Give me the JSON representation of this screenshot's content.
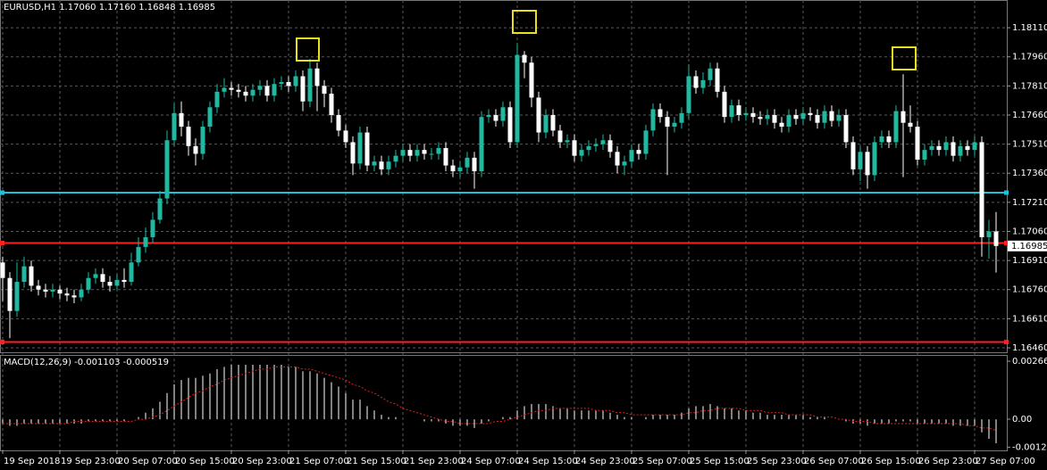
{
  "chart_data": [
    {
      "type": "candlestick",
      "title": "EURUSD,H1  1.17060 1.17160 1.16848 1.16985",
      "open": [
        1.169,
        1.1682,
        1.1665,
        1.168,
        1.1688,
        1.1678,
        1.1676,
        1.1675,
        1.1676,
        1.1674,
        1.1673,
        1.1672,
        1.1676,
        1.1682,
        1.1684,
        1.168,
        1.1678,
        1.1681,
        1.168,
        1.169,
        1.1698,
        1.1703,
        1.1712,
        1.1723,
        1.1753,
        1.1767,
        1.176,
        1.175,
        1.1746,
        1.176,
        1.177,
        1.1778,
        1.178,
        1.1779,
        1.1778,
        1.1776,
        1.1779,
        1.1781,
        1.1776,
        1.1782,
        1.1783,
        1.1781,
        1.1786,
        1.1773,
        1.179,
        1.1781,
        1.1777,
        1.1766,
        1.1758,
        1.1752,
        1.1741,
        1.1757,
        1.174,
        1.1742,
        1.1738,
        1.1742,
        1.1745,
        1.1748,
        1.1745,
        1.1748,
        1.1746,
        1.1746,
        1.1749,
        1.174,
        1.1737,
        1.1739,
        1.1744,
        1.1737,
        1.1765,
        1.1766,
        1.1763,
        1.177,
        1.1752,
        1.1797,
        1.1793,
        1.1775,
        1.1757,
        1.1766,
        1.1758,
        1.1752,
        1.1753,
        1.1745,
        1.1748,
        1.175,
        1.1751,
        1.1753,
        1.1747,
        1.174,
        1.1742,
        1.1748,
        1.1746,
        1.1758,
        1.1769,
        1.1765,
        1.176,
        1.1762,
        1.1767,
        1.1786,
        1.178,
        1.1784,
        1.179,
        1.1778,
        1.1765,
        1.1771,
        1.1766,
        1.1767,
        1.1765,
        1.1764,
        1.1766,
        1.1762,
        1.176,
        1.1766,
        1.1764,
        1.1767,
        1.1766,
        1.1762,
        1.1768,
        1.1763,
        1.1766,
        1.1752,
        1.1738,
        1.1747,
        1.1735,
        1.1752,
        1.1755,
        1.1752,
        1.1768,
        1.1762,
        1.176,
        1.1743,
        1.1748,
        1.175,
        1.1748,
        1.1752,
        1.1745,
        1.175,
        1.1748,
        1.1752,
        1.1703,
        1.1706
      ],
      "high": [
        1.1693,
        1.1685,
        1.169,
        1.1693,
        1.1691,
        1.1681,
        1.1679,
        1.1679,
        1.1678,
        1.1677,
        1.1676,
        1.1679,
        1.1685,
        1.1687,
        1.1687,
        1.1683,
        1.1684,
        1.1687,
        1.1695,
        1.1703,
        1.1708,
        1.1716,
        1.1727,
        1.1758,
        1.1772,
        1.1773,
        1.1763,
        1.1754,
        1.1763,
        1.1773,
        1.1782,
        1.1785,
        1.1783,
        1.1782,
        1.1781,
        1.1782,
        1.1784,
        1.1784,
        1.1785,
        1.1786,
        1.1786,
        1.1789,
        1.1789,
        1.1795,
        1.1793,
        1.1784,
        1.178,
        1.1769,
        1.1761,
        1.1755,
        1.176,
        1.176,
        1.1745,
        1.1745,
        1.1745,
        1.1748,
        1.1751,
        1.1751,
        1.1751,
        1.1751,
        1.1749,
        1.1752,
        1.1752,
        1.1743,
        1.1742,
        1.1747,
        1.1747,
        1.1768,
        1.1769,
        1.1769,
        1.1773,
        1.1773,
        1.1803,
        1.1799,
        1.1796,
        1.1778,
        1.1769,
        1.1769,
        1.1761,
        1.1756,
        1.1756,
        1.1751,
        1.1753,
        1.1754,
        1.1756,
        1.1756,
        1.175,
        1.1745,
        1.1751,
        1.1751,
        1.1761,
        1.1772,
        1.1772,
        1.1768,
        1.1765,
        1.177,
        1.1792,
        1.1789,
        1.1788,
        1.1793,
        1.1793,
        1.1781,
        1.1774,
        1.1774,
        1.177,
        1.177,
        1.1768,
        1.1769,
        1.1769,
        1.1765,
        1.1769,
        1.1769,
        1.177,
        1.177,
        1.1769,
        1.1771,
        1.1771,
        1.1769,
        1.1769,
        1.1755,
        1.175,
        1.175,
        1.1755,
        1.1758,
        1.1758,
        1.1771,
        1.1787,
        1.1771,
        1.1763,
        1.1751,
        1.1753,
        1.1753,
        1.1755,
        1.1755,
        1.1753,
        1.1753,
        1.1755,
        1.1755,
        1.1712,
        1.1716
      ],
      "low": [
        1.167,
        1.1651,
        1.1662,
        1.1677,
        1.1675,
        1.1673,
        1.1672,
        1.1672,
        1.1671,
        1.167,
        1.1669,
        1.167,
        1.1674,
        1.1679,
        1.1677,
        1.1675,
        1.1676,
        1.1677,
        1.1678,
        1.1688,
        1.1695,
        1.17,
        1.171,
        1.172,
        1.175,
        1.1755,
        1.1745,
        1.174,
        1.1743,
        1.1757,
        1.1767,
        1.1775,
        1.1776,
        1.1775,
        1.1773,
        1.1773,
        1.1776,
        1.1773,
        1.1773,
        1.1779,
        1.1778,
        1.1778,
        1.1768,
        1.177,
        1.1768,
        1.177,
        1.1762,
        1.1755,
        1.1749,
        1.1735,
        1.1738,
        1.1737,
        1.1737,
        1.1735,
        1.1735,
        1.1739,
        1.1742,
        1.1742,
        1.1742,
        1.1743,
        1.1743,
        1.1743,
        1.1737,
        1.1734,
        1.1734,
        1.1736,
        1.1728,
        1.1734,
        1.1762,
        1.176,
        1.176,
        1.1749,
        1.1749,
        1.1785,
        1.177,
        1.1752,
        1.1754,
        1.1755,
        1.1749,
        1.1749,
        1.1742,
        1.1742,
        1.1745,
        1.1747,
        1.1748,
        1.1744,
        1.1736,
        1.1735,
        1.1739,
        1.1743,
        1.1743,
        1.1755,
        1.1762,
        1.1735,
        1.1757,
        1.1759,
        1.1764,
        1.1777,
        1.1777,
        1.1781,
        1.1775,
        1.1762,
        1.1762,
        1.1763,
        1.1763,
        1.1762,
        1.1761,
        1.1761,
        1.1759,
        1.1757,
        1.1757,
        1.1761,
        1.1761,
        1.1763,
        1.1759,
        1.1759,
        1.176,
        1.176,
        1.1749,
        1.1735,
        1.1732,
        1.1728,
        1.1732,
        1.1749,
        1.1749,
        1.1749,
        1.1734,
        1.1757,
        1.174,
        1.174,
        1.1745,
        1.1745,
        1.1745,
        1.1742,
        1.1742,
        1.1745,
        1.1745,
        1.1693,
        1.1692,
        1.16848
      ],
      "close": [
        1.1682,
        1.1665,
        1.168,
        1.1688,
        1.1678,
        1.1676,
        1.1675,
        1.1676,
        1.1674,
        1.1673,
        1.1672,
        1.1676,
        1.1682,
        1.1684,
        1.168,
        1.1678,
        1.1681,
        1.168,
        1.169,
        1.1698,
        1.1703,
        1.1712,
        1.1723,
        1.1753,
        1.1767,
        1.176,
        1.175,
        1.1746,
        1.176,
        1.177,
        1.1778,
        1.178,
        1.1779,
        1.1778,
        1.1776,
        1.1779,
        1.1781,
        1.1776,
        1.1782,
        1.1783,
        1.1781,
        1.1786,
        1.1773,
        1.179,
        1.1781,
        1.1777,
        1.1766,
        1.1758,
        1.1752,
        1.1741,
        1.1757,
        1.174,
        1.1742,
        1.1738,
        1.1742,
        1.1745,
        1.1748,
        1.1745,
        1.1748,
        1.1746,
        1.1746,
        1.1749,
        1.174,
        1.1737,
        1.1739,
        1.1744,
        1.1737,
        1.1765,
        1.1766,
        1.1763,
        1.177,
        1.1752,
        1.1797,
        1.1793,
        1.1775,
        1.1757,
        1.1766,
        1.1758,
        1.1752,
        1.1753,
        1.1745,
        1.1748,
        1.175,
        1.1751,
        1.1753,
        1.1747,
        1.174,
        1.1742,
        1.1748,
        1.1746,
        1.1758,
        1.1769,
        1.1765,
        1.176,
        1.1762,
        1.1767,
        1.1786,
        1.178,
        1.1784,
        1.179,
        1.1778,
        1.1765,
        1.1771,
        1.1766,
        1.1767,
        1.1765,
        1.1764,
        1.1766,
        1.1762,
        1.176,
        1.1766,
        1.1764,
        1.1767,
        1.1766,
        1.1762,
        1.1768,
        1.1763,
        1.1766,
        1.1752,
        1.1738,
        1.1747,
        1.1735,
        1.1752,
        1.1755,
        1.1752,
        1.1768,
        1.1762,
        1.176,
        1.1743,
        1.1748,
        1.175,
        1.1748,
        1.1752,
        1.1745,
        1.175,
        1.1748,
        1.1752,
        1.1703,
        1.1706,
        1.16985
      ],
      "up_color": "#20b8a0",
      "down_color": "#ffffff",
      "x_ticks": [
        "19 Sep 2018",
        "19 Sep 23:00",
        "20 Sep 07:00",
        "20 Sep 15:00",
        "20 Sep 23:00",
        "21 Sep 07:00",
        "21 Sep 15:00",
        "21 Sep 23:00",
        "24 Sep 07:00",
        "24 Sep 15:00",
        "24 Sep 23:00",
        "25 Sep 07:00",
        "25 Sep 15:00",
        "25 Sep 23:00",
        "26 Sep 07:00",
        "26 Sep 15:00",
        "26 Sep 23:00",
        "27 Sep 07:00"
      ],
      "ylim": [
        1.16437,
        1.18253
      ],
      "yticks": [
        {
          "value": 1.1811,
          "label": "1.18110"
        },
        {
          "value": 1.1796,
          "label": "1.17960"
        },
        {
          "value": 1.1781,
          "label": "1.17810"
        },
        {
          "value": 1.1766,
          "label": "1.17660"
        },
        {
          "value": 1.1751,
          "label": "1.17510"
        },
        {
          "value": 1.1736,
          "label": "1.17360"
        },
        {
          "value": 1.1721,
          "label": "1.17210"
        },
        {
          "value": 1.1706,
          "label": "1.17060"
        },
        {
          "value": 1.1691,
          "label": "1.16910"
        },
        {
          "value": 1.1676,
          "label": "1.16760"
        },
        {
          "value": 1.1661,
          "label": "1.16610"
        },
        {
          "value": 1.1646,
          "label": "1.16460"
        }
      ],
      "grid": true,
      "levels": [
        {
          "value": 1.1726,
          "color": "#20c0d8"
        },
        {
          "value": 1.17,
          "color": "#ff2020"
        },
        {
          "value": 1.1649,
          "color": "#ff2020"
        }
      ],
      "price_label": {
        "value": 1.16985,
        "label": "1.16985"
      }
    },
    {
      "type": "macd",
      "title": "MACD(12,26,9) -0.001103 -0.000519",
      "values": [
        -0.0002,
        -0.0003,
        -0.0003,
        -0.0002,
        -0.0002,
        -0.0002,
        -0.0002,
        -0.0002,
        -0.0002,
        -0.0002,
        -0.0002,
        -0.0002,
        -0.0001,
        -0.0001,
        -0.0001,
        -0.0001,
        -0.0001,
        -0.0001,
        0,
        0.0001,
        0.0003,
        0.0005,
        0.0008,
        0.0012,
        0.0016,
        0.0018,
        0.0019,
        0.0019,
        0.002,
        0.0021,
        0.0023,
        0.0024,
        0.0025,
        0.0025,
        0.0025,
        0.0025,
        0.0025,
        0.0025,
        0.0025,
        0.0025,
        0.0024,
        0.0024,
        0.0022,
        0.0022,
        0.0021,
        0.0019,
        0.0017,
        0.0015,
        0.0012,
        0.0009,
        0.0009,
        0.0006,
        0.0004,
        0.0002,
        0.0001,
        0.0001,
        0,
        0,
        0,
        -0.0001,
        -0.0001,
        -0.0001,
        -0.0002,
        -0.0003,
        -0.0003,
        -0.0003,
        -0.0004,
        -0.0002,
        -0.0001,
        0,
        0.0001,
        0.0001,
        0.0004,
        0.0006,
        0.0007,
        0.0007,
        0.0007,
        0.0006,
        0.0005,
        0.0005,
        0.0004,
        0.0004,
        0.0004,
        0.0004,
        0.0004,
        0.0003,
        0.0002,
        0.0001,
        0.0001,
        0,
        0.0001,
        0.0002,
        0.0002,
        0.0002,
        0.0002,
        0.0003,
        0.0005,
        0.0006,
        0.0006,
        0.0007,
        0.0006,
        0.0005,
        0.0005,
        0.0004,
        0.0004,
        0.0003,
        0.0003,
        0.0002,
        0.0002,
        0.0002,
        0.0002,
        0.0002,
        0.0002,
        0.0001,
        0.0001,
        0.0001,
        0,
        0,
        -0.0001,
        -0.0002,
        -0.0002,
        -0.0003,
        -0.0002,
        -0.0002,
        -0.0002,
        -0.0001,
        -0.0001,
        -0.0001,
        -0.0002,
        -0.0002,
        -0.0002,
        -0.0002,
        -0.0002,
        -0.0003,
        -0.0003,
        -0.0003,
        -0.0003,
        -0.0006,
        -0.0009,
        -0.001103
      ],
      "signal": [
        -0.0002,
        -0.0002,
        -0.0002,
        -0.0002,
        -0.0002,
        -0.0002,
        -0.0002,
        -0.0002,
        -0.0002,
        -0.0002,
        -0.0001,
        -0.0001,
        -0.0001,
        -0.0001,
        -0.0001,
        -0.0001,
        -0.0001,
        -0.0001,
        -0.0001,
        0,
        0,
        0.0001,
        0.0002,
        0.0004,
        0.0006,
        0.0008,
        0.001,
        0.0012,
        0.0013,
        0.0015,
        0.0016,
        0.0018,
        0.0019,
        0.002,
        0.0021,
        0.0022,
        0.0023,
        0.0023,
        0.0024,
        0.0024,
        0.0024,
        0.0024,
        0.0023,
        0.0023,
        0.0022,
        0.0021,
        0.002,
        0.0019,
        0.0018,
        0.0016,
        0.0015,
        0.0013,
        0.0012,
        0.001,
        0.0008,
        0.0007,
        0.0005,
        0.0004,
        0.0003,
        0.0002,
        0.0001,
        0,
        -0.0001,
        -0.0001,
        -0.0002,
        -0.0002,
        -0.0002,
        -0.0002,
        -0.0002,
        -0.0001,
        -0.0001,
        0,
        0.0001,
        0.0002,
        0.0003,
        0.0004,
        0.0004,
        0.0005,
        0.0005,
        0.0005,
        0.0005,
        0.0005,
        0.0005,
        0.0004,
        0.0004,
        0.0004,
        0.0003,
        0.0003,
        0.0002,
        0.0002,
        0.0002,
        0.0002,
        0.0002,
        0.0002,
        0.0002,
        0.0002,
        0.0003,
        0.0003,
        0.0004,
        0.0004,
        0.0005,
        0.0005,
        0.0005,
        0.0005,
        0.0004,
        0.0004,
        0.0004,
        0.0003,
        0.0003,
        0.0003,
        0.0002,
        0.0002,
        0.0002,
        0.0002,
        0.0001,
        0.0001,
        0.0001,
        0,
        0,
        -0.0001,
        -0.0001,
        -0.0001,
        -0.0002,
        -0.0002,
        -0.0002,
        -0.0002,
        -0.0002,
        -0.0002,
        -0.0002,
        -0.0002,
        -0.0002,
        -0.0002,
        -0.0002,
        -0.0002,
        -0.0002,
        -0.0003,
        -0.0003,
        -0.0004,
        -0.0004,
        -0.000519
      ],
      "color": "#ffffff",
      "signal_color": "#e02020",
      "ylim": [
        -0.00143,
        0.00295
      ],
      "yticks": [
        0.002664,
        {
          "value": 0,
          "label": "0.00"
        },
        -0.001283
      ]
    }
  ]
}
